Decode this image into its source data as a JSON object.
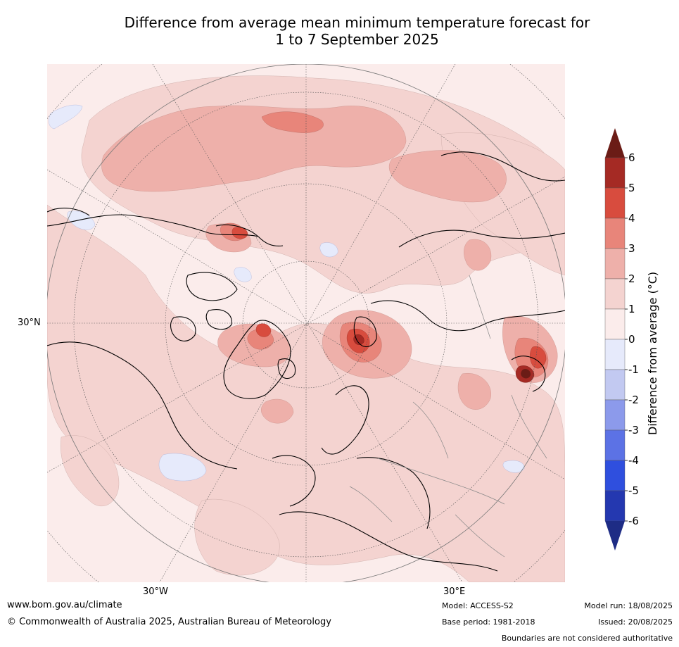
{
  "title": {
    "line1": "Difference from average mean minimum temperature forecast for",
    "line2": "1 to 7 September 2025"
  },
  "map": {
    "projection": "polar-stereographic-north",
    "lon_labels": [
      "30°W",
      "30°E"
    ],
    "lat_labels": [
      "30°N"
    ]
  },
  "colorbar": {
    "label": "Difference from average (°C)",
    "ticks": [
      "6",
      "5",
      "4",
      "3",
      "2",
      "1",
      "0",
      "-1",
      "-2",
      "-3",
      "-4",
      "-5",
      "-6"
    ],
    "extend": "both",
    "colors": {
      "above_6": "#6b1c16",
      "5_6": "#a52a24",
      "4_5": "#d84c3e",
      "3_4": "#e8857a",
      "2_3": "#eeb0aa",
      "1_2": "#f4d3d0",
      "0_1": "#fbeceb",
      "m1_0": "#e6eafb",
      "m2_m1": "#c2c9f1",
      "m3_m2": "#8c9aeb",
      "m4_m3": "#5c72e5",
      "m5_m4": "#2f4fde",
      "m6_m5": "#2438b0",
      "below_m6": "#1e2c85"
    }
  },
  "footer": {
    "website": "www.bom.gov.au/climate",
    "copyright": "© Commonwealth of Australia 2025, Australian Bureau of Meteorology",
    "model": "Model: ACCESS-S2",
    "base_period": "Base period: 1981-2018",
    "model_run": "Model run: 18/08/2025",
    "issued": "Issued: 20/08/2025",
    "disclaimer": "Boundaries are not considered authoritative"
  }
}
